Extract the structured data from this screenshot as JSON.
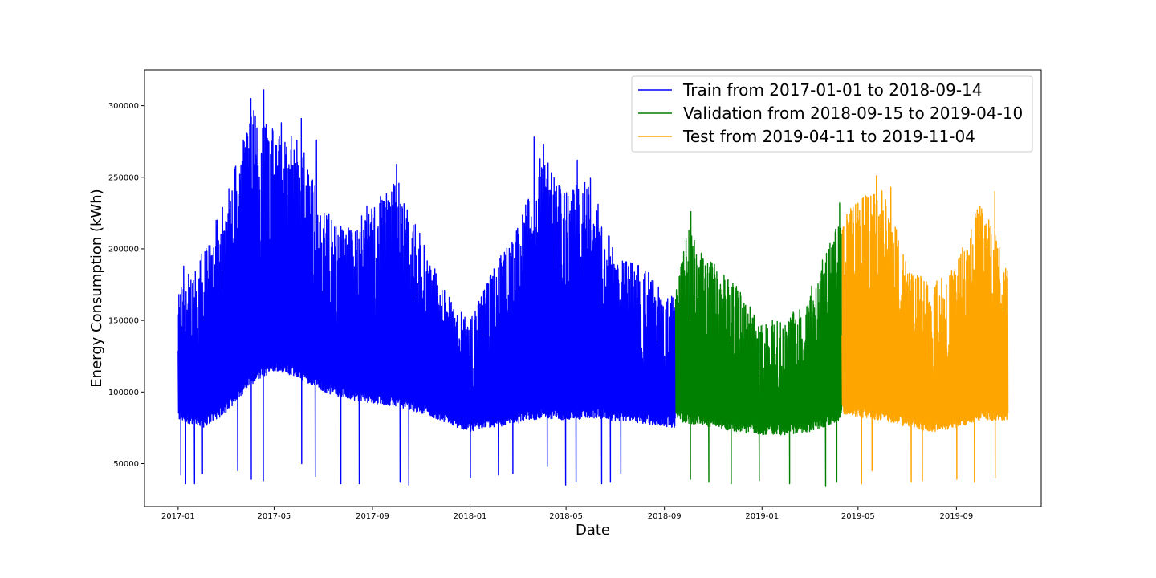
{
  "chart_data": {
    "type": "line",
    "title": "",
    "xlabel": "Date",
    "ylabel": "Energy Consumption (kWh)",
    "xlim": [
      "2016-11-20",
      "2019-12-16"
    ],
    "ylim": [
      20000,
      325000
    ],
    "grid": false,
    "legend_position": "top-right",
    "x_ticks": [
      "2017-01",
      "2017-05",
      "2017-09",
      "2018-01",
      "2018-05",
      "2018-09",
      "2019-01",
      "2019-05",
      "2019-09"
    ],
    "y_ticks": [
      50000,
      100000,
      150000,
      200000,
      250000,
      300000
    ],
    "y_tick_labels": [
      "50000",
      "100000",
      "150000",
      "200000",
      "250000",
      "300000"
    ],
    "series": [
      {
        "name": "Train from 2017-01-01 to 2018-09-14",
        "color": "#0000ff",
        "start": "2017-01-01",
        "end": "2018-09-14",
        "envelope": [
          {
            "x": "2017-01-01",
            "low": 80000,
            "high": 175000
          },
          {
            "x": "2017-02-01",
            "low": 75000,
            "high": 200000
          },
          {
            "x": "2017-03-01",
            "low": 85000,
            "high": 235000
          },
          {
            "x": "2017-04-01",
            "low": 105000,
            "high": 300000
          },
          {
            "x": "2017-05-01",
            "low": 115000,
            "high": 285000
          },
          {
            "x": "2017-06-01",
            "low": 110000,
            "high": 280000
          },
          {
            "x": "2017-07-01",
            "low": 100000,
            "high": 230000
          },
          {
            "x": "2017-08-01",
            "low": 95000,
            "high": 215000
          },
          {
            "x": "2017-09-01",
            "low": 92000,
            "high": 230000
          },
          {
            "x": "2017-10-01",
            "low": 90000,
            "high": 250000
          },
          {
            "x": "2017-11-01",
            "low": 85000,
            "high": 210000
          },
          {
            "x": "2017-12-01",
            "low": 78000,
            "high": 170000
          },
          {
            "x": "2018-01-01",
            "low": 72000,
            "high": 150000
          },
          {
            "x": "2018-02-01",
            "low": 75000,
            "high": 190000
          },
          {
            "x": "2018-03-01",
            "low": 78000,
            "high": 215000
          },
          {
            "x": "2018-04-01",
            "low": 82000,
            "high": 270000
          },
          {
            "x": "2018-05-01",
            "low": 80000,
            "high": 240000
          },
          {
            "x": "2018-06-01",
            "low": 82000,
            "high": 255000
          },
          {
            "x": "2018-07-01",
            "low": 80000,
            "high": 195000
          },
          {
            "x": "2018-08-01",
            "low": 78000,
            "high": 190000
          },
          {
            "x": "2018-09-14",
            "low": 75000,
            "high": 165000
          }
        ]
      },
      {
        "name": "Validation from 2018-09-15 to 2019-04-10",
        "color": "#008000",
        "start": "2018-09-15",
        "end": "2019-04-10",
        "envelope": [
          {
            "x": "2018-09-15",
            "low": 80000,
            "high": 175000
          },
          {
            "x": "2018-10-01",
            "low": 78000,
            "high": 215000
          },
          {
            "x": "2018-11-01",
            "low": 75000,
            "high": 190000
          },
          {
            "x": "2018-12-01",
            "low": 72000,
            "high": 175000
          },
          {
            "x": "2019-01-01",
            "low": 70000,
            "high": 150000
          },
          {
            "x": "2019-02-01",
            "low": 70000,
            "high": 150000
          },
          {
            "x": "2019-03-01",
            "low": 72000,
            "high": 170000
          },
          {
            "x": "2019-04-10",
            "low": 80000,
            "high": 225000
          }
        ]
      },
      {
        "name": "Test from 2019-04-11 to 2019-11-04",
        "color": "#ffa500",
        "start": "2019-04-11",
        "end": "2019-11-04",
        "envelope": [
          {
            "x": "2019-04-11",
            "low": 85000,
            "high": 220000
          },
          {
            "x": "2019-05-01",
            "low": 82000,
            "high": 235000
          },
          {
            "x": "2019-06-01",
            "low": 80000,
            "high": 245000
          },
          {
            "x": "2019-07-01",
            "low": 75000,
            "high": 190000
          },
          {
            "x": "2019-08-01",
            "low": 72000,
            "high": 175000
          },
          {
            "x": "2019-09-01",
            "low": 75000,
            "high": 190000
          },
          {
            "x": "2019-10-01",
            "low": 80000,
            "high": 235000
          },
          {
            "x": "2019-11-04",
            "low": 80000,
            "high": 190000
          }
        ]
      }
    ],
    "dips": [
      {
        "x": "2017-01-04",
        "y": 42000
      },
      {
        "x": "2017-01-10",
        "y": 36000
      },
      {
        "x": "2017-01-21",
        "y": 36000
      },
      {
        "x": "2017-01-31",
        "y": 43000
      },
      {
        "x": "2017-03-16",
        "y": 45000
      },
      {
        "x": "2017-04-02",
        "y": 39000
      },
      {
        "x": "2017-04-17",
        "y": 38000
      },
      {
        "x": "2017-06-04",
        "y": 50000
      },
      {
        "x": "2017-06-21",
        "y": 41000
      },
      {
        "x": "2017-07-23",
        "y": 36000
      },
      {
        "x": "2017-08-15",
        "y": 36000
      },
      {
        "x": "2017-10-05",
        "y": 37000
      },
      {
        "x": "2017-10-16",
        "y": 35000
      },
      {
        "x": "2018-01-01",
        "y": 40000
      },
      {
        "x": "2018-02-05",
        "y": 42000
      },
      {
        "x": "2018-02-23",
        "y": 43000
      },
      {
        "x": "2018-04-07",
        "y": 48000
      },
      {
        "x": "2018-04-30",
        "y": 35000
      },
      {
        "x": "2018-05-13",
        "y": 37000
      },
      {
        "x": "2018-06-14",
        "y": 36000
      },
      {
        "x": "2018-06-25",
        "y": 37000
      },
      {
        "x": "2018-07-08",
        "y": 43000
      },
      {
        "x": "2018-10-03",
        "y": 39000
      },
      {
        "x": "2018-10-26",
        "y": 37000
      },
      {
        "x": "2018-11-23",
        "y": 36000
      },
      {
        "x": "2018-12-28",
        "y": 38000
      },
      {
        "x": "2019-02-04",
        "y": 36000
      },
      {
        "x": "2019-03-21",
        "y": 34000
      },
      {
        "x": "2019-04-04",
        "y": 37000
      },
      {
        "x": "2019-05-05",
        "y": 36000
      },
      {
        "x": "2019-05-18",
        "y": 45000
      },
      {
        "x": "2019-07-06",
        "y": 37000
      },
      {
        "x": "2019-07-20",
        "y": 38000
      },
      {
        "x": "2019-09-01",
        "y": 39000
      },
      {
        "x": "2019-09-23",
        "y": 37000
      },
      {
        "x": "2019-10-19",
        "y": 40000
      }
    ],
    "peaks": [
      {
        "x": "2017-01-08",
        "y": 188000
      },
      {
        "x": "2017-03-15",
        "y": 240000
      },
      {
        "x": "2017-04-02",
        "y": 305000
      },
      {
        "x": "2017-04-18",
        "y": 311000
      },
      {
        "x": "2017-05-10",
        "y": 288000
      },
      {
        "x": "2017-06-04",
        "y": 291000
      },
      {
        "x": "2017-06-23",
        "y": 276000
      },
      {
        "x": "2017-08-25",
        "y": 230000
      },
      {
        "x": "2017-10-01",
        "y": 259000
      },
      {
        "x": "2018-03-22",
        "y": 278000
      },
      {
        "x": "2018-04-03",
        "y": 273000
      },
      {
        "x": "2018-05-15",
        "y": 262000
      },
      {
        "x": "2018-10-04",
        "y": 226000
      },
      {
        "x": "2019-04-08",
        "y": 232000
      },
      {
        "x": "2019-05-24",
        "y": 251000
      },
      {
        "x": "2019-06-11",
        "y": 243000
      },
      {
        "x": "2019-10-19",
        "y": 240000
      }
    ]
  }
}
